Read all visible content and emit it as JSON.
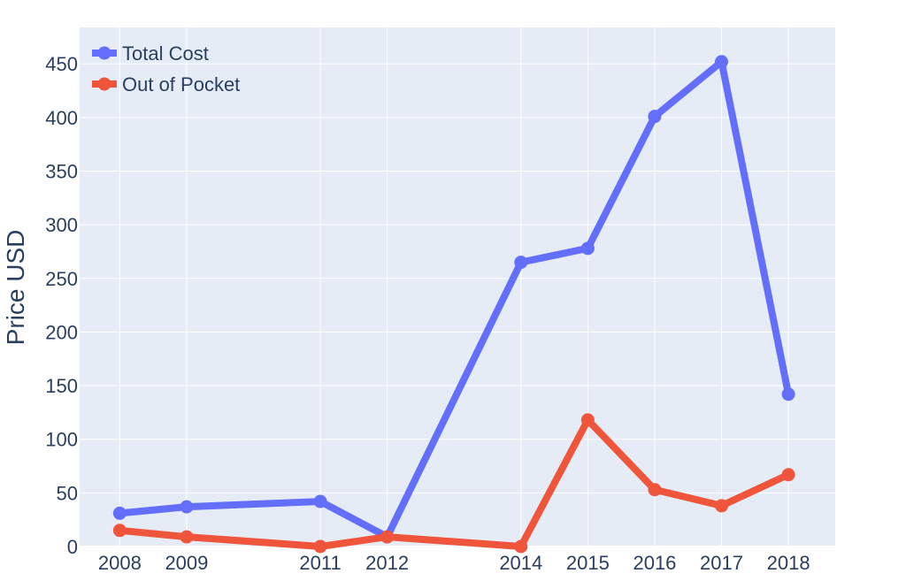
{
  "chart_data": {
    "type": "line",
    "title": "",
    "xlabel": "",
    "ylabel": "Price USD",
    "x": [
      2008,
      2009,
      2011,
      2012,
      2014,
      2015,
      2016,
      2017,
      2018
    ],
    "x_tick_labels": [
      "2008",
      "2009",
      "2011",
      "2012",
      "2014",
      "2015",
      "2016",
      "2017",
      "2018"
    ],
    "xlim": [
      2007.4,
      2018.7
    ],
    "ylim": [
      0,
      484
    ],
    "y_ticks": [
      0,
      50,
      100,
      150,
      200,
      250,
      300,
      350,
      400,
      450
    ],
    "grid": true,
    "legend_position": "top-left",
    "series": [
      {
        "name": "Total Cost",
        "color": "#636efa",
        "values": [
          31,
          37,
          42,
          9,
          265,
          278,
          401,
          452,
          142
        ]
      },
      {
        "name": "Out of Pocket",
        "color": "#ef553b",
        "values": [
          15,
          9,
          0,
          9,
          0,
          118,
          53,
          38,
          67
        ]
      }
    ],
    "plot_background": "#e5ecf6",
    "grid_color": "#ffffff",
    "text_color": "#2a3f5f"
  }
}
